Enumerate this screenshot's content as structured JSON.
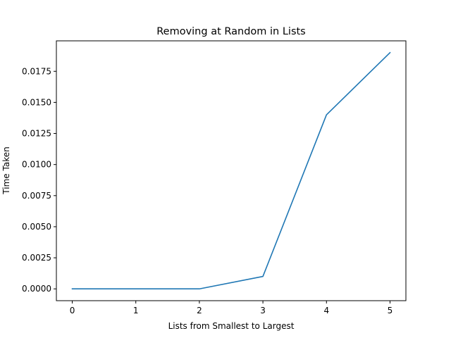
{
  "chart_data": {
    "type": "line",
    "title": "Removing at Random in Lists",
    "xlabel": "Lists from Smallest to Largest",
    "ylabel": "Time Taken",
    "x": [
      0,
      1,
      2,
      3,
      4,
      5
    ],
    "series": [
      {
        "values": [
          0.0,
          0.0,
          0.0,
          0.001,
          0.014,
          0.019
        ]
      }
    ],
    "xlim": [
      -0.25,
      5.25
    ],
    "ylim": [
      -0.00095,
      0.01995
    ],
    "xticks": [
      0,
      1,
      2,
      3,
      4,
      5
    ],
    "xtick_labels": [
      "0",
      "1",
      "2",
      "3",
      "4",
      "5"
    ],
    "yticks": [
      0.0,
      0.0025,
      0.005,
      0.0075,
      0.01,
      0.0125,
      0.015,
      0.0175
    ],
    "ytick_labels": [
      "0.0000",
      "0.0025",
      "0.0050",
      "0.0075",
      "0.0100",
      "0.0125",
      "0.0150",
      "0.0175"
    ],
    "grid": false,
    "legend": "none",
    "line_color": "#1f77b4"
  }
}
